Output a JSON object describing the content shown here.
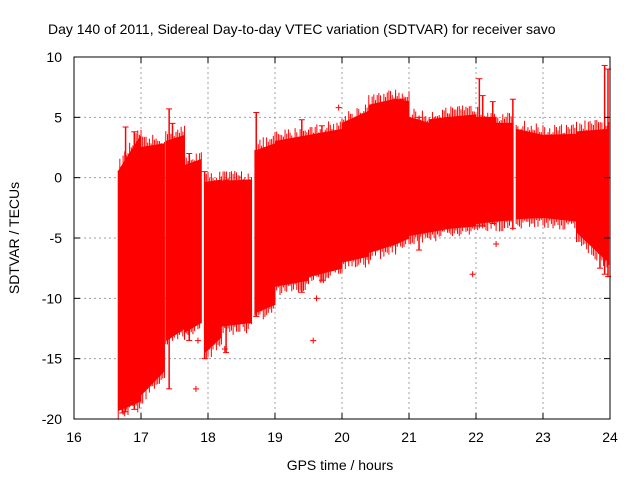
{
  "chart_data": {
    "type": "scatter",
    "title": "Day 140 of 2011, Sidereal Day-to-day VTEC variation (SDTVAR) for receiver savo",
    "xlabel": "GPS time / hours",
    "ylabel": "SDTVAR / TECUs",
    "xlim": [
      16,
      24
    ],
    "ylim": [
      -20,
      10
    ],
    "xticks": [
      16,
      17,
      18,
      19,
      20,
      21,
      22,
      23,
      24
    ],
    "yticks": [
      -20,
      -15,
      -10,
      -5,
      0,
      5,
      10
    ],
    "grid": true,
    "color": "#ff0000",
    "band_segments": [
      {
        "x": [
          16.66,
          17.0
        ],
        "upper": [
          0.5,
          3.5
        ],
        "lower": [
          -19.3,
          -18.5
        ]
      },
      {
        "x": [
          17.0,
          17.35
        ],
        "upper": [
          2.5,
          2.8
        ],
        "lower": [
          -18.0,
          -16.0
        ]
      },
      {
        "x": [
          17.37,
          17.65
        ],
        "upper": [
          3.0,
          3.5
        ],
        "lower": [
          -13.5,
          -12.5
        ]
      },
      {
        "x": [
          17.65,
          17.9
        ],
        "upper": [
          1.0,
          1.5
        ],
        "lower": [
          -12.8,
          -12.0
        ]
      },
      {
        "x": [
          17.95,
          18.2
        ],
        "upper": [
          -0.4,
          -0.2
        ],
        "lower": [
          -14.5,
          -13.2
        ]
      },
      {
        "x": [
          18.2,
          18.65
        ],
        "upper": [
          -0.3,
          -0.2
        ],
        "lower": [
          -12.3,
          -12.0
        ]
      },
      {
        "x": [
          18.7,
          19.0
        ],
        "upper": [
          2.2,
          2.8
        ],
        "lower": [
          -11.2,
          -10.5
        ]
      },
      {
        "x": [
          19.0,
          19.5
        ],
        "upper": [
          3.0,
          3.5
        ],
        "lower": [
          -9.0,
          -8.5
        ]
      },
      {
        "x": [
          19.5,
          20.0
        ],
        "upper": [
          3.5,
          4.0
        ],
        "lower": [
          -8.2,
          -7.5
        ]
      },
      {
        "x": [
          20.0,
          20.4
        ],
        "upper": [
          4.5,
          5.5
        ],
        "lower": [
          -7.0,
          -6.5
        ]
      },
      {
        "x": [
          20.4,
          20.8
        ],
        "upper": [
          6.0,
          6.5
        ],
        "lower": [
          -6.2,
          -5.5
        ]
      },
      {
        "x": [
          20.8,
          21.0
        ],
        "upper": [
          6.5,
          6.3
        ],
        "lower": [
          -5.5,
          -5.0
        ]
      },
      {
        "x": [
          21.0,
          21.3
        ],
        "upper": [
          5.0,
          4.5
        ],
        "lower": [
          -4.8,
          -4.5
        ]
      },
      {
        "x": [
          21.3,
          21.6
        ],
        "upper": [
          4.8,
          5.0
        ],
        "lower": [
          -4.5,
          -4.2
        ]
      },
      {
        "x": [
          21.6,
          22.0
        ],
        "upper": [
          5.0,
          5.2
        ],
        "lower": [
          -4.2,
          -4.0
        ]
      },
      {
        "x": [
          22.0,
          22.3
        ],
        "upper": [
          5.0,
          5.0
        ],
        "lower": [
          -3.8,
          -3.6
        ]
      },
      {
        "x": [
          22.3,
          22.55
        ],
        "upper": [
          4.5,
          4.5
        ],
        "lower": [
          -3.6,
          -3.5
        ]
      },
      {
        "x": [
          22.6,
          23.0
        ],
        "upper": [
          4.0,
          3.5
        ],
        "lower": [
          -3.4,
          -3.3
        ]
      },
      {
        "x": [
          23.0,
          23.5
        ],
        "upper": [
          3.5,
          3.6
        ],
        "lower": [
          -3.3,
          -3.6
        ]
      },
      {
        "x": [
          23.5,
          23.98
        ],
        "upper": [
          3.8,
          4.0
        ],
        "lower": [
          -4.5,
          -7.0
        ]
      }
    ],
    "spikes": [
      {
        "x": 16.72,
        "y1": -19.5,
        "y2": 0.8
      },
      {
        "x": 16.77,
        "y1": -19.4,
        "y2": 4.2
      },
      {
        "x": 16.9,
        "y1": -19.2,
        "y2": 3.8
      },
      {
        "x": 17.42,
        "y1": -17.5,
        "y2": 5.7
      },
      {
        "x": 17.47,
        "y1": -13.0,
        "y2": 4.5
      },
      {
        "x": 17.72,
        "y1": -13.5,
        "y2": 2.0
      },
      {
        "x": 17.95,
        "y1": -15.0,
        "y2": 0.5
      },
      {
        "x": 18.27,
        "y1": -14.5,
        "y2": -0.2
      },
      {
        "x": 18.72,
        "y1": -11.5,
        "y2": 5.4
      },
      {
        "x": 19.4,
        "y1": -9.5,
        "y2": 4.8
      },
      {
        "x": 19.7,
        "y1": -8.5,
        "y2": 4.3
      },
      {
        "x": 20.9,
        "y1": -5.0,
        "y2": 6.5
      },
      {
        "x": 21.15,
        "y1": -6.0,
        "y2": 5.0
      },
      {
        "x": 22.05,
        "y1": -4.0,
        "y2": 8.2
      },
      {
        "x": 22.1,
        "y1": -4.0,
        "y2": 6.8
      },
      {
        "x": 22.25,
        "y1": -3.8,
        "y2": 6.3
      },
      {
        "x": 22.55,
        "y1": -4.2,
        "y2": 6.5
      },
      {
        "x": 23.85,
        "y1": -7.5,
        "y2": 1.5
      },
      {
        "x": 23.92,
        "y1": -8.0,
        "y2": 9.3
      },
      {
        "x": 23.97,
        "y1": -8.2,
        "y2": 9.0
      }
    ],
    "outliers": [
      {
        "x": 17.82,
        "y": -17.5
      },
      {
        "x": 17.85,
        "y": -13.5
      },
      {
        "x": 18.25,
        "y": -14.2
      },
      {
        "x": 19.57,
        "y": -13.5
      },
      {
        "x": 19.62,
        "y": -10.0
      },
      {
        "x": 19.95,
        "y": 5.8
      },
      {
        "x": 21.95,
        "y": -8.0
      },
      {
        "x": 22.3,
        "y": -5.5
      },
      {
        "x": 17.0,
        "y": -5.5
      }
    ]
  }
}
